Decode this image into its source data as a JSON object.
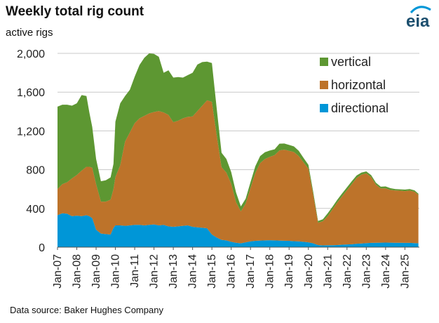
{
  "title": "Weekly total rig count",
  "subtitle": "active rigs",
  "source": "Data source: Baker Hughes Company",
  "logo_text": "eia",
  "colors": {
    "vertical": "#5d9732",
    "horizontal": "#bd732a",
    "directional": "#0096d7",
    "grid": "#c8c8c8",
    "logo": "#1c4f6e",
    "logo_arc": "#0096d7"
  },
  "chart_data": {
    "type": "area",
    "stacked": true,
    "title": "Weekly total rig count",
    "ylabel": "active rigs",
    "ylim": [
      0,
      2000
    ],
    "yticks": [
      0,
      400,
      800,
      1200,
      1600,
      2000
    ],
    "ytick_labels": [
      "0",
      "400",
      "800",
      "1,200",
      "1,600",
      "2,000"
    ],
    "xlim": [
      2007.0,
      2025.75
    ],
    "xticks": [
      "Jan-07",
      "Jan-08",
      "Jan-09",
      "Jan-10",
      "Jan-11",
      "Jan-12",
      "Jan-13",
      "Jan-14",
      "Jan-15",
      "Jan-16",
      "Jan-17",
      "Jan-18",
      "Jan-19",
      "Jan-20",
      "Jan-21",
      "Jan-22",
      "Jan-23",
      "Jan-24",
      "Jan-25"
    ],
    "grid": true,
    "legend_position": "top-right",
    "x": [
      2007.0,
      2007.25,
      2007.5,
      2007.75,
      2008.0,
      2008.25,
      2008.5,
      2008.65,
      2008.8,
      2009.0,
      2009.25,
      2009.5,
      2009.75,
      2009.9,
      2010.0,
      2010.25,
      2010.5,
      2010.75,
      2011.0,
      2011.25,
      2011.5,
      2011.75,
      2012.0,
      2012.25,
      2012.5,
      2012.75,
      2013.0,
      2013.25,
      2013.5,
      2013.75,
      2014.0,
      2014.25,
      2014.5,
      2014.75,
      2015.0,
      2015.25,
      2015.5,
      2015.75,
      2016.0,
      2016.25,
      2016.5,
      2016.75,
      2017.0,
      2017.25,
      2017.5,
      2017.75,
      2018.0,
      2018.25,
      2018.5,
      2018.75,
      2019.0,
      2019.25,
      2019.5,
      2019.75,
      2020.0,
      2020.25,
      2020.5,
      2020.75,
      2021.0,
      2021.25,
      2021.5,
      2021.75,
      2022.0,
      2022.25,
      2022.5,
      2022.75,
      2023.0,
      2023.25,
      2023.5,
      2023.75,
      2024.0,
      2024.25,
      2024.5,
      2024.75,
      2025.0,
      2025.25,
      2025.5,
      2025.7
    ],
    "series": [
      {
        "name": "directional",
        "values": [
          330,
          350,
          345,
          320,
          325,
          320,
          330,
          320,
          300,
          180,
          140,
          135,
          130,
          200,
          225,
          225,
          220,
          225,
          230,
          230,
          225,
          230,
          235,
          225,
          230,
          215,
          210,
          215,
          220,
          225,
          210,
          205,
          200,
          195,
          130,
          100,
          75,
          70,
          55,
          45,
          40,
          50,
          60,
          65,
          68,
          70,
          72,
          70,
          68,
          66,
          65,
          62,
          60,
          55,
          50,
          40,
          22,
          18,
          20,
          20,
          22,
          25,
          28,
          30,
          35,
          38,
          42,
          44,
          45,
          46,
          47,
          46,
          45,
          45,
          44,
          44,
          42,
          40
        ]
      },
      {
        "name": "horizontal",
        "values": [
          270,
          300,
          325,
          390,
          420,
          470,
          500,
          510,
          520,
          470,
          330,
          335,
          360,
          400,
          500,
          620,
          870,
          960,
          1050,
          1100,
          1130,
          1150,
          1160,
          1180,
          1160,
          1150,
          1080,
          1090,
          1110,
          1120,
          1140,
          1200,
          1260,
          1320,
          1370,
          1050,
          750,
          700,
          600,
          420,
          330,
          400,
          550,
          700,
          800,
          840,
          860,
          880,
          930,
          940,
          930,
          920,
          880,
          820,
          760,
          500,
          230,
          250,
          300,
          370,
          440,
          500,
          560,
          620,
          680,
          710,
          720,
          680,
          600,
          560,
          560,
          545,
          540,
          538,
          535,
          540,
          530,
          500
        ]
      },
      {
        "name": "vertical",
        "values": [
          850,
          820,
          800,
          750,
          740,
          780,
          730,
          560,
          420,
          260,
          210,
          220,
          230,
          260,
          570,
          640,
          470,
          440,
          480,
          550,
          600,
          620,
          600,
          560,
          410,
          460,
          460,
          450,
          420,
          430,
          450,
          480,
          450,
          400,
          400,
          280,
          150,
          140,
          120,
          100,
          50,
          50,
          60,
          70,
          72,
          70,
          65,
          60,
          70,
          64,
          60,
          58,
          55,
          45,
          40,
          30,
          18,
          20,
          30,
          28,
          28,
          30,
          30,
          31,
          25,
          22,
          20,
          20,
          20,
          18,
          20,
          18,
          15,
          14,
          15,
          16,
          14,
          12
        ]
      }
    ]
  }
}
